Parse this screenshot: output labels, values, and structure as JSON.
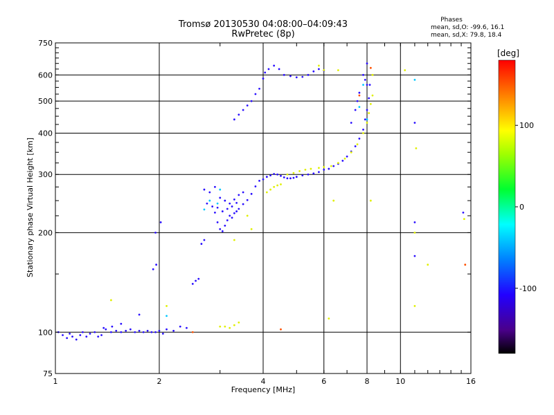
{
  "chart_data": {
    "type": "scatter",
    "title": "Tromsø 20130530 04:08:00–04:09:43",
    "subtitle": "RwPretec (8p)",
    "xlabel": "Frequency [MHz]",
    "ylabel": "Stationary phase Virtual Height [km]",
    "x_scale": "log2",
    "y_scale": "log",
    "xlim": [
      1,
      16
    ],
    "ylim": [
      75,
      750
    ],
    "x_ticks": [
      1,
      2,
      4,
      6,
      8,
      10,
      16
    ],
    "x_tick_labels": [
      "1",
      "2",
      "4",
      "6",
      "8",
      "10",
      "16"
    ],
    "y_ticks": [
      75,
      100,
      200,
      300,
      400,
      500,
      600,
      750
    ],
    "y_tick_labels": [
      "75",
      "100",
      "200",
      "300",
      "400",
      "500",
      "600",
      "750"
    ],
    "grid_x": [
      2,
      4,
      6,
      8,
      10
    ],
    "grid_y": [
      100,
      200,
      300,
      400,
      500,
      600
    ],
    "phase_stats": {
      "title": "Phases",
      "line_o": "mean, sd,O: -99.6, 16.1",
      "line_x": "mean, sd,X:  79.8, 18.4"
    },
    "colorbar": {
      "label": "[deg]",
      "range": [
        -180,
        180
      ],
      "ticks": [
        100,
        0,
        -100
      ],
      "tick_labels": [
        "100",
        "0",
        "-100"
      ]
    },
    "series": [
      {
        "color_phase": -100,
        "points": [
          [
            1.02,
            100
          ],
          [
            1.05,
            98
          ],
          [
            1.08,
            96
          ],
          [
            1.1,
            99
          ],
          [
            1.12,
            97
          ],
          [
            1.15,
            95
          ],
          [
            1.18,
            98
          ],
          [
            1.2,
            100
          ],
          [
            1.23,
            97
          ],
          [
            1.26,
            99
          ],
          [
            1.3,
            100
          ],
          [
            1.33,
            97
          ],
          [
            1.36,
            98
          ],
          [
            1.4,
            102
          ],
          [
            1.45,
            100
          ],
          [
            1.5,
            101
          ],
          [
            1.55,
            100
          ],
          [
            1.6,
            101
          ],
          [
            1.65,
            102
          ],
          [
            1.7,
            100
          ],
          [
            1.75,
            101
          ],
          [
            1.8,
            100
          ],
          [
            1.85,
            101
          ],
          [
            1.9,
            100
          ],
          [
            1.95,
            100
          ],
          [
            2.0,
            101
          ],
          [
            2.05,
            99
          ],
          [
            2.1,
            102
          ],
          [
            2.2,
            101
          ],
          [
            2.3,
            104
          ],
          [
            2.4,
            103
          ],
          [
            1.38,
            103
          ],
          [
            1.46,
            104
          ],
          [
            1.55,
            106
          ],
          [
            1.75,
            113
          ],
          [
            1.95,
            200
          ],
          [
            2.02,
            215
          ],
          [
            1.92,
            155
          ],
          [
            1.96,
            160
          ],
          [
            2.5,
            140
          ],
          [
            2.55,
            143
          ],
          [
            2.6,
            145
          ],
          [
            2.65,
            185
          ],
          [
            2.7,
            190
          ],
          [
            2.75,
            245
          ],
          [
            2.85,
            240
          ],
          [
            2.9,
            230
          ],
          [
            2.95,
            215
          ],
          [
            3.0,
            205
          ],
          [
            3.05,
            202
          ],
          [
            3.1,
            210
          ],
          [
            3.15,
            218
          ],
          [
            3.2,
            225
          ],
          [
            3.25,
            222
          ],
          [
            3.3,
            229
          ],
          [
            3.35,
            232
          ],
          [
            3.4,
            236
          ],
          [
            3.5,
            244
          ],
          [
            3.6,
            251
          ],
          [
            3.7,
            262
          ],
          [
            3.8,
            276
          ],
          [
            3.9,
            287
          ],
          [
            4.0,
            290
          ],
          [
            4.1,
            295
          ],
          [
            4.2,
            298
          ],
          [
            4.3,
            301
          ],
          [
            4.4,
            300
          ],
          [
            4.5,
            297
          ],
          [
            4.6,
            294
          ],
          [
            4.7,
            292
          ],
          [
            4.8,
            292
          ],
          [
            4.9,
            293
          ],
          [
            5.0,
            295
          ],
          [
            5.2,
            298
          ],
          [
            5.4,
            300
          ],
          [
            5.6,
            302
          ],
          [
            5.8,
            305
          ],
          [
            6.0,
            310
          ],
          [
            6.2,
            312
          ],
          [
            6.4,
            318
          ],
          [
            6.6,
            323
          ],
          [
            6.8,
            330
          ],
          [
            7.0,
            340
          ],
          [
            7.2,
            352
          ],
          [
            7.4,
            365
          ],
          [
            7.6,
            385
          ],
          [
            7.8,
            410
          ],
          [
            7.9,
            440
          ],
          [
            8.0,
            470
          ],
          [
            8.1,
            510
          ],
          [
            8.15,
            560
          ],
          [
            2.7,
            270
          ],
          [
            2.8,
            265
          ],
          [
            2.9,
            275
          ],
          [
            3.0,
            255
          ],
          [
            3.1,
            250
          ],
          [
            3.2,
            245
          ],
          [
            3.3,
            252
          ],
          [
            3.4,
            260
          ],
          [
            3.5,
            265
          ],
          [
            2.95,
            238
          ],
          [
            3.05,
            232
          ],
          [
            3.15,
            236
          ],
          [
            3.25,
            240
          ],
          [
            3.35,
            246
          ],
          [
            3.3,
            440
          ],
          [
            3.4,
            455
          ],
          [
            3.5,
            470
          ],
          [
            3.6,
            485
          ],
          [
            3.7,
            500
          ],
          [
            3.8,
            525
          ],
          [
            3.9,
            545
          ],
          [
            4.0,
            585
          ],
          [
            4.05,
            610
          ],
          [
            4.15,
            625
          ],
          [
            4.3,
            640
          ],
          [
            4.45,
            625
          ],
          [
            4.6,
            600
          ],
          [
            4.8,
            595
          ],
          [
            5.0,
            590
          ],
          [
            5.2,
            592
          ],
          [
            5.4,
            600
          ],
          [
            5.6,
            615
          ],
          [
            5.8,
            625
          ],
          [
            6.0,
            618
          ],
          [
            7.8,
            600
          ],
          [
            7.9,
            580
          ],
          [
            8.0,
            560
          ],
          [
            7.2,
            430
          ],
          [
            7.4,
            470
          ],
          [
            7.5,
            500
          ],
          [
            7.6,
            530
          ],
          [
            15.2,
            230
          ],
          [
            11.0,
            215
          ],
          [
            11.0,
            170
          ],
          [
            11.0,
            430
          ],
          [
            8.0,
            650
          ]
        ]
      },
      {
        "color_phase": 85,
        "points": [
          [
            3.0,
            104
          ],
          [
            3.1,
            104
          ],
          [
            3.2,
            103
          ],
          [
            3.3,
            105
          ],
          [
            3.4,
            107
          ],
          [
            4.1,
            265
          ],
          [
            4.2,
            270
          ],
          [
            4.3,
            275
          ],
          [
            4.4,
            278
          ],
          [
            4.5,
            280
          ],
          [
            4.7,
            300
          ],
          [
            4.9,
            303
          ],
          [
            5.1,
            307
          ],
          [
            5.3,
            310
          ],
          [
            5.5,
            312
          ],
          [
            5.8,
            314
          ],
          [
            6.0,
            316
          ],
          [
            6.3,
            318
          ],
          [
            6.6,
            325
          ],
          [
            6.9,
            335
          ],
          [
            7.2,
            350
          ],
          [
            7.5,
            370
          ],
          [
            7.8,
            400
          ],
          [
            8.0,
            430
          ],
          [
            8.1,
            460
          ],
          [
            8.2,
            490
          ],
          [
            8.3,
            520
          ],
          [
            8.3,
            600
          ],
          [
            1.45,
            125
          ],
          [
            2.1,
            120
          ],
          [
            3.3,
            190
          ],
          [
            3.7,
            205
          ],
          [
            3.6,
            225
          ],
          [
            5.8,
            640
          ],
          [
            6.0,
            620
          ],
          [
            6.6,
            620
          ],
          [
            8.2,
            250
          ],
          [
            11.1,
            360
          ],
          [
            11.0,
            200
          ],
          [
            11.0,
            120
          ],
          [
            12.0,
            160
          ],
          [
            10.3,
            620
          ],
          [
            15.3,
            220
          ],
          [
            6.2,
            110
          ],
          [
            6.4,
            250
          ]
        ]
      },
      {
        "color_phase": -30,
        "points": [
          [
            2.7,
            235
          ],
          [
            2.8,
            250
          ],
          [
            2.95,
            245
          ],
          [
            3.0,
            270
          ],
          [
            7.6,
            480
          ],
          [
            7.8,
            560
          ],
          [
            8.0,
            440
          ],
          [
            11.0,
            580
          ],
          [
            2.1,
            112
          ]
        ]
      },
      {
        "color_phase": 150,
        "points": [
          [
            15.4,
            160
          ],
          [
            7.6,
            520
          ],
          [
            4.5,
            102
          ],
          [
            8.2,
            630
          ],
          [
            2.5,
            100
          ]
        ]
      }
    ]
  }
}
